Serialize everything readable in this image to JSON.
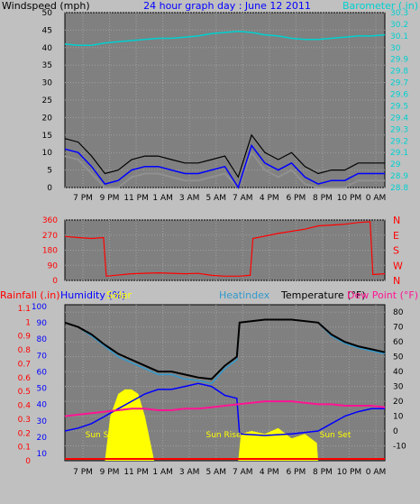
{
  "colors": {
    "background": "#c0c0c0",
    "plot_bg": "#808080",
    "grid": "#a0a0a0",
    "wind_avg": "#0000ff",
    "wind_gust": "#000000",
    "wind_grey": "#909090",
    "barometer": "#00d0d0",
    "wind_dir": "#ff0000",
    "rain": "#ff0000",
    "humidity": "#0000ff",
    "solar": "#ffff00",
    "heatindex": "#3399cc",
    "temperature": "#000000",
    "dewpoint": "#ff1493",
    "sun_label": "#ffff00"
  },
  "chart_data": [
    {
      "type": "line",
      "title": "24 hour graph day : June 12 2011",
      "left_axis_label": "Windspeed (mph)",
      "right_axis_label": "Barometer (.in)",
      "x_ticks": [
        "7 PM",
        "9 PM",
        "11 PM",
        "1 AM",
        "3 AM",
        "5 AM",
        "7 AM",
        "4 PM",
        "6 PM",
        "8 PM",
        "10 PM",
        "0 AM"
      ],
      "left_ticks": [
        "0",
        "5",
        "10",
        "15",
        "20",
        "25",
        "30",
        "35",
        "40",
        "45",
        "50"
      ],
      "right_ticks": [
        "28.8",
        "28.9",
        "29",
        "29.1",
        "29.2",
        "29.3",
        "29.4",
        "29.5",
        "29.6",
        "29.7",
        "29.8",
        "29.9",
        "30",
        "30.1",
        "30.2",
        "30.3"
      ],
      "ylim_left": [
        0,
        50
      ],
      "ylim_right": [
        28.8,
        30.3
      ],
      "series": [
        {
          "name": "Windspeed",
          "x": [
            17,
            18,
            19,
            20,
            21,
            22,
            23,
            24,
            25,
            26,
            27,
            28,
            29,
            30,
            31,
            32,
            33,
            34,
            35,
            36,
            37,
            38,
            39,
            40,
            41
          ],
          "values": [
            11,
            10,
            6,
            1,
            2,
            5,
            6,
            6,
            5,
            4,
            4,
            5,
            6,
            0,
            12,
            7,
            5,
            7,
            3,
            1,
            2,
            2,
            4,
            4,
            4
          ]
        },
        {
          "name": "Barometer",
          "x": [
            17,
            18,
            19,
            20,
            21,
            22,
            23,
            24,
            25,
            26,
            27,
            28,
            29,
            30,
            31,
            32,
            33,
            34,
            35,
            36,
            37,
            38,
            39,
            40,
            41
          ],
          "values": [
            30.03,
            30.02,
            30.02,
            30.04,
            30.05,
            30.06,
            30.07,
            30.08,
            30.08,
            30.09,
            30.1,
            30.12,
            30.13,
            30.14,
            30.13,
            30.11,
            30.1,
            30.08,
            30.07,
            30.07,
            30.08,
            30.09,
            30.1,
            30.1,
            30.11
          ]
        }
      ]
    },
    {
      "type": "line",
      "left_ticks": [
        "0",
        "90",
        "180",
        "270",
        "360"
      ],
      "right_ticks": [
        "N",
        "W",
        "S",
        "E",
        "N"
      ],
      "ylim": [
        0,
        360
      ],
      "series": [
        {
          "name": "Wind direction",
          "x": [
            17,
            18,
            19,
            19.9,
            20.1,
            22,
            24,
            26,
            27,
            28,
            29,
            30,
            30.9,
            31.1,
            33,
            35,
            36,
            37,
            38,
            39,
            39.9,
            40.1,
            41
          ],
          "values": [
            262,
            255,
            250,
            255,
            25,
            40,
            45,
            40,
            42,
            30,
            25,
            25,
            30,
            250,
            280,
            305,
            325,
            330,
            335,
            345,
            350,
            35,
            40
          ]
        }
      ]
    },
    {
      "type": "line",
      "rain_label": "Rainfall (.in)",
      "humidity_label": "Humidity (%)",
      "solar_label": "Solar",
      "heatindex_label": "Heatindex",
      "temperature_label": "Temperature (°F)",
      "dewpoint_label": "Dew Point (°F)",
      "annotations": [
        "Sun Set",
        "Sun Rise",
        "Sun Set"
      ],
      "x_ticks": [
        "7 PM",
        "9 PM",
        "11 PM",
        "1 AM",
        "3 AM",
        "5 AM",
        "7 AM",
        "4 PM",
        "6 PM",
        "8 PM",
        "10 PM",
        "0 AM"
      ],
      "left_ticks": [
        "0",
        "0.1",
        "0.2",
        "0.3",
        "0.4",
        "0.5",
        "0.6",
        "0.7",
        "0.8",
        "0.9",
        "1",
        "1.1"
      ],
      "humidity_ticks": [
        "10",
        "20",
        "30",
        "40",
        "50",
        "60",
        "70",
        "80",
        "90",
        "100"
      ],
      "right_ticks": [
        "-10",
        "0",
        "10",
        "20",
        "30",
        "40",
        "50",
        "60",
        "70",
        "80"
      ],
      "ylim_temp": [
        -20,
        85
      ],
      "series": [
        {
          "name": "Temperature",
          "x": [
            17,
            18,
            19,
            20,
            21,
            22,
            23,
            24,
            25,
            26,
            27,
            28,
            29,
            29.9,
            30.1,
            32,
            34,
            36,
            37,
            38,
            39,
            40,
            41
          ],
          "values": [
            73,
            70,
            65,
            58,
            52,
            48,
            44,
            40,
            40,
            38,
            36,
            35,
            44,
            50,
            73,
            75,
            75,
            73,
            65,
            60,
            57,
            55,
            53
          ]
        },
        {
          "name": "Heatindex",
          "x": [
            17,
            18,
            19,
            20,
            21,
            22,
            23,
            24,
            25,
            26,
            27,
            28,
            29,
            29.9,
            30.1,
            32,
            34,
            36,
            37,
            38,
            39,
            40,
            41
          ],
          "values": [
            73,
            70,
            64,
            57,
            50,
            46,
            42,
            38,
            38,
            35,
            34,
            32,
            42,
            48,
            73,
            75,
            75,
            73,
            64,
            59,
            56,
            54,
            52
          ]
        },
        {
          "name": "Dew Point",
          "x": [
            17,
            18,
            19,
            20,
            21,
            22,
            23,
            24,
            25,
            26,
            27,
            28,
            29,
            30,
            31,
            32,
            33,
            34,
            35,
            36,
            37,
            38,
            39,
            40,
            41
          ],
          "values": [
            10,
            11,
            12,
            13,
            14,
            15,
            15,
            14,
            14,
            15,
            15,
            16,
            17,
            18,
            19,
            20,
            20,
            20,
            19,
            18,
            18,
            17,
            17,
            17,
            16
          ]
        },
        {
          "name": "Humidity",
          "x": [
            17,
            18,
            19,
            20,
            21,
            22,
            23,
            24,
            25,
            26,
            27,
            28,
            29,
            29.9,
            30.1,
            32,
            34,
            36,
            37,
            38,
            39,
            40,
            41
          ],
          "values": [
            0,
            2,
            5,
            10,
            15,
            20,
            25,
            28,
            28,
            30,
            32,
            30,
            24,
            22,
            -2,
            -3,
            -2,
            0,
            5,
            10,
            13,
            15,
            15
          ]
        },
        {
          "name": "Solar",
          "x": [
            17,
            20,
            20.4,
            21,
            21.5,
            22,
            22.5,
            23,
            23.7,
            24,
            30,
            30.2,
            31,
            32,
            33,
            34,
            35,
            35.9,
            36,
            41
          ],
          "values": [
            0,
            0,
            30,
            45,
            48,
            48,
            45,
            30,
            0,
            0,
            0,
            18,
            20,
            18,
            22,
            15,
            18,
            12,
            0,
            0
          ]
        }
      ]
    }
  ]
}
